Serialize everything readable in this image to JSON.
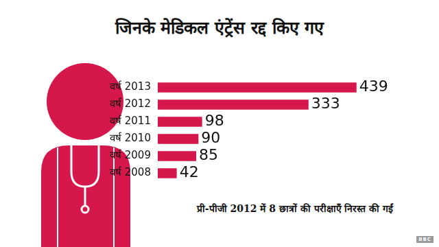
{
  "chart_data": {
    "type": "bar",
    "title": "जिनके मेडिकल एंट्रेंस रद्द किए गए",
    "categories": [
      "वर्ष 2013",
      "वर्ष 2012",
      "वर्ष 2011",
      "वर्ष 2010",
      "वर्ष 2009",
      "वर्ष 2008"
    ],
    "values": [
      439,
      333,
      98,
      90,
      85,
      42
    ],
    "color": "#d6174b",
    "orientation": "horizontal",
    "xlim": [
      0,
      500
    ],
    "grid": false,
    "data_labels": true,
    "tick_labels": "y",
    "annotations": [
      "प्री-पीजी 2012 में 8 छात्रों की परीक्षाएँ निरस्त की गईं",
      "BBC"
    ]
  }
}
